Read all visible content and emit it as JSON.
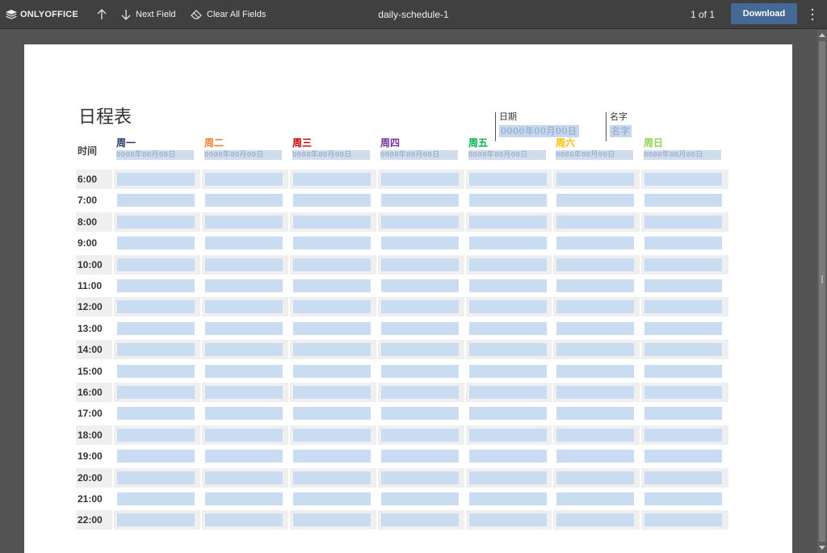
{
  "toolbar": {
    "brand": "ONLYOFFICE",
    "next_field": "Next Field",
    "clear_all": "Clear All Fields",
    "title": "daily-schedule-1",
    "page_count": "1 of 1",
    "download": "Download"
  },
  "doc": {
    "heading": "日程表",
    "date_label": "日期",
    "date_placeholder": "0000年00月00日",
    "name_label": "名字",
    "name_placeholder": "名字",
    "time_header": "时间",
    "days": [
      {
        "name": "周一",
        "color": "#1f3864",
        "date_placeholder": "0000年00月00日"
      },
      {
        "name": "周二",
        "color": "#ed7d31",
        "date_placeholder": "0000年00月00日"
      },
      {
        "name": "周三",
        "color": "#c00000",
        "date_placeholder": "0000年00月00日"
      },
      {
        "name": "周四",
        "color": "#7030a0",
        "date_placeholder": "0000年00月00日"
      },
      {
        "name": "周五",
        "color": "#00b050",
        "date_placeholder": "0000年00月00日"
      },
      {
        "name": "周六",
        "color": "#ffc000",
        "date_placeholder": "0000年00月00日"
      },
      {
        "name": "周日",
        "color": "#92d050",
        "date_placeholder": "0000年00月00日"
      }
    ],
    "times": [
      "6:00",
      "7:00",
      "8:00",
      "9:00",
      "10:00",
      "11:00",
      "12:00",
      "13:00",
      "14:00",
      "15:00",
      "16:00",
      "17:00",
      "18:00",
      "19:00",
      "20:00",
      "21:00",
      "22:00"
    ]
  },
  "colors": {
    "toolbar_bg": "#404040",
    "accent": "#446995",
    "field_fill": "#cadcf2"
  }
}
